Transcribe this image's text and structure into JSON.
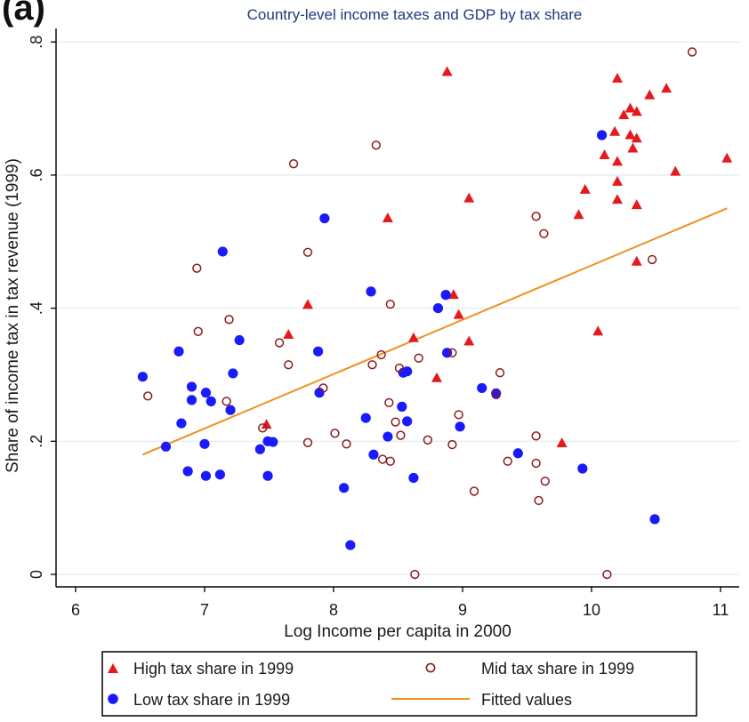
{
  "panel_label": "(a)",
  "chart_data": {
    "type": "scatter",
    "title": "Country-level income taxes and GDP by tax share",
    "xlabel": "Log Income per capita in 2000",
    "ylabel": "Share of income tax in tax revenue (1999)",
    "xlim": [
      6,
      11.1
    ],
    "ylim": [
      -0.02,
      0.81
    ],
    "x_ticks": [
      {
        "value": 6,
        "label": "6"
      },
      {
        "value": 7,
        "label": "7"
      },
      {
        "value": 8,
        "label": "8"
      },
      {
        "value": 9,
        "label": "9"
      },
      {
        "value": 10,
        "label": "10"
      },
      {
        "value": 11,
        "label": "11"
      }
    ],
    "y_ticks": [
      {
        "value": 0,
        "label": "0"
      },
      {
        "value": 0.2,
        "label": ".2"
      },
      {
        "value": 0.4,
        "label": ".4"
      },
      {
        "value": 0.6,
        "label": ".6"
      },
      {
        "value": 0.8,
        "label": ".8"
      }
    ],
    "grid": true,
    "legend_position": "bottom",
    "colors": {
      "high": "#e41a1c",
      "low": "#1a1aff",
      "mid": "#8b1a1a",
      "fit": "#f0901e",
      "grid": "#e6ecef",
      "axis": "#000000"
    },
    "series": [
      {
        "name": "High tax share in 1999",
        "marker": "triangle",
        "points": [
          [
            8.88,
            0.755
          ],
          [
            10.2,
            0.745
          ],
          [
            10.58,
            0.73
          ],
          [
            10.45,
            0.72
          ],
          [
            10.3,
            0.7
          ],
          [
            10.25,
            0.69
          ],
          [
            10.35,
            0.695
          ],
          [
            10.18,
            0.665
          ],
          [
            10.3,
            0.66
          ],
          [
            10.35,
            0.655
          ],
          [
            10.32,
            0.64
          ],
          [
            10.1,
            0.63
          ],
          [
            10.2,
            0.62
          ],
          [
            11.05,
            0.625
          ],
          [
            10.65,
            0.605
          ],
          [
            10.2,
            0.59
          ],
          [
            9.95,
            0.578
          ],
          [
            10.2,
            0.563
          ],
          [
            9.05,
            0.565
          ],
          [
            10.35,
            0.555
          ],
          [
            9.9,
            0.54
          ],
          [
            8.42,
            0.535
          ],
          [
            10.35,
            0.47
          ],
          [
            7.8,
            0.405
          ],
          [
            8.93,
            0.42
          ],
          [
            8.97,
            0.39
          ],
          [
            7.65,
            0.36
          ],
          [
            10.05,
            0.365
          ],
          [
            8.62,
            0.355
          ],
          [
            9.05,
            0.35
          ],
          [
            8.8,
            0.295
          ],
          [
            7.48,
            0.225
          ],
          [
            9.77,
            0.197
          ]
        ]
      },
      {
        "name": "Low tax share in 1999",
        "marker": "filled-circle",
        "points": [
          [
            10.08,
            0.66
          ],
          [
            7.93,
            0.535
          ],
          [
            7.14,
            0.485
          ],
          [
            8.29,
            0.425
          ],
          [
            8.87,
            0.42
          ],
          [
            8.81,
            0.4
          ],
          [
            7.27,
            0.352
          ],
          [
            6.8,
            0.335
          ],
          [
            7.88,
            0.335
          ],
          [
            8.88,
            0.333
          ],
          [
            6.52,
            0.297
          ],
          [
            7.22,
            0.302
          ],
          [
            8.54,
            0.303
          ],
          [
            8.57,
            0.305
          ],
          [
            6.9,
            0.282
          ],
          [
            7.01,
            0.273
          ],
          [
            9.15,
            0.28
          ],
          [
            7.89,
            0.273
          ],
          [
            9.26,
            0.272
          ],
          [
            7.05,
            0.26
          ],
          [
            6.9,
            0.262
          ],
          [
            7.2,
            0.247
          ],
          [
            8.53,
            0.252
          ],
          [
            8.25,
            0.235
          ],
          [
            6.82,
            0.227
          ],
          [
            8.57,
            0.23
          ],
          [
            8.98,
            0.222
          ],
          [
            8.42,
            0.207
          ],
          [
            7.49,
            0.2
          ],
          [
            7.53,
            0.199
          ],
          [
            6.7,
            0.192
          ],
          [
            7.0,
            0.196
          ],
          [
            7.43,
            0.188
          ],
          [
            8.31,
            0.18
          ],
          [
            9.43,
            0.182
          ],
          [
            9.93,
            0.159
          ],
          [
            6.87,
            0.155
          ],
          [
            7.01,
            0.148
          ],
          [
            7.12,
            0.15
          ],
          [
            7.49,
            0.148
          ],
          [
            8.62,
            0.145
          ],
          [
            8.08,
            0.13
          ],
          [
            8.13,
            0.044
          ],
          [
            10.49,
            0.083
          ]
        ]
      },
      {
        "name": "Mid tax share in 1999",
        "marker": "hollow-circle",
        "points": [
          [
            10.78,
            0.785
          ],
          [
            8.33,
            0.645
          ],
          [
            7.69,
            0.617
          ],
          [
            9.57,
            0.538
          ],
          [
            9.63,
            0.512
          ],
          [
            7.8,
            0.484
          ],
          [
            6.94,
            0.46
          ],
          [
            10.47,
            0.473
          ],
          [
            8.44,
            0.406
          ],
          [
            7.19,
            0.383
          ],
          [
            6.95,
            0.365
          ],
          [
            7.58,
            0.348
          ],
          [
            8.37,
            0.33
          ],
          [
            8.92,
            0.333
          ],
          [
            7.65,
            0.315
          ],
          [
            8.66,
            0.325
          ],
          [
            8.3,
            0.315
          ],
          [
            8.51,
            0.31
          ],
          [
            9.29,
            0.303
          ],
          [
            6.56,
            0.268
          ],
          [
            7.92,
            0.28
          ],
          [
            7.17,
            0.26
          ],
          [
            8.43,
            0.258
          ],
          [
            9.26,
            0.27
          ],
          [
            8.97,
            0.24
          ],
          [
            7.45,
            0.22
          ],
          [
            8.48,
            0.229
          ],
          [
            8.01,
            0.212
          ],
          [
            8.52,
            0.209
          ],
          [
            9.57,
            0.208
          ],
          [
            7.8,
            0.198
          ],
          [
            8.73,
            0.202
          ],
          [
            8.1,
            0.196
          ],
          [
            8.92,
            0.195
          ],
          [
            8.38,
            0.173
          ],
          [
            8.44,
            0.17
          ],
          [
            9.35,
            0.17
          ],
          [
            9.57,
            0.167
          ],
          [
            9.64,
            0.14
          ],
          [
            9.09,
            0.125
          ],
          [
            9.59,
            0.111
          ],
          [
            8.63,
            0.0
          ],
          [
            10.12,
            0.0
          ]
        ]
      }
    ],
    "fitted_line": {
      "name": "Fitted values",
      "x": [
        6.52,
        11.05
      ],
      "y": [
        0.18,
        0.55
      ]
    }
  }
}
